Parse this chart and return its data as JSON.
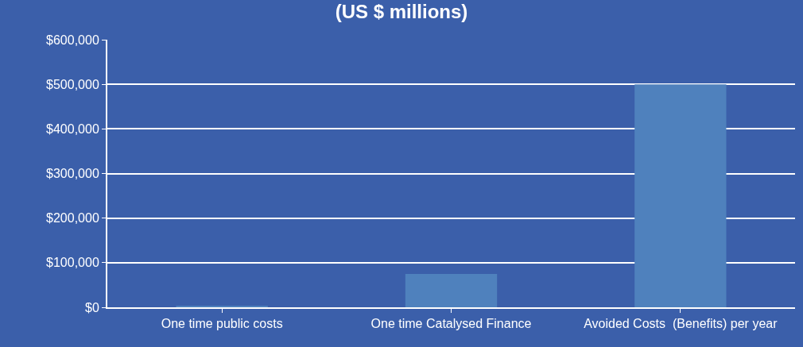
{
  "chart_data": {
    "type": "bar",
    "title": "(US $ millions)",
    "categories": [
      "One time public costs",
      "One time Catalysed Finance",
      "Avoided Costs  (Benefits) per year"
    ],
    "values": [
      2000,
      75000,
      500000
    ],
    "color": "#4f81bd",
    "ylim": [
      0,
      600000
    ],
    "yticks": [
      {
        "value": 0,
        "label": "$0"
      },
      {
        "value": 100000,
        "label": "$100,000"
      },
      {
        "value": 200000,
        "label": "$200,000"
      },
      {
        "value": 300000,
        "label": "$300,000"
      },
      {
        "value": 400000,
        "label": "$400,000"
      },
      {
        "value": 500000,
        "label": "$500,000"
      },
      {
        "value": 600000,
        "label": "$600,000"
      }
    ],
    "grid": "y"
  }
}
